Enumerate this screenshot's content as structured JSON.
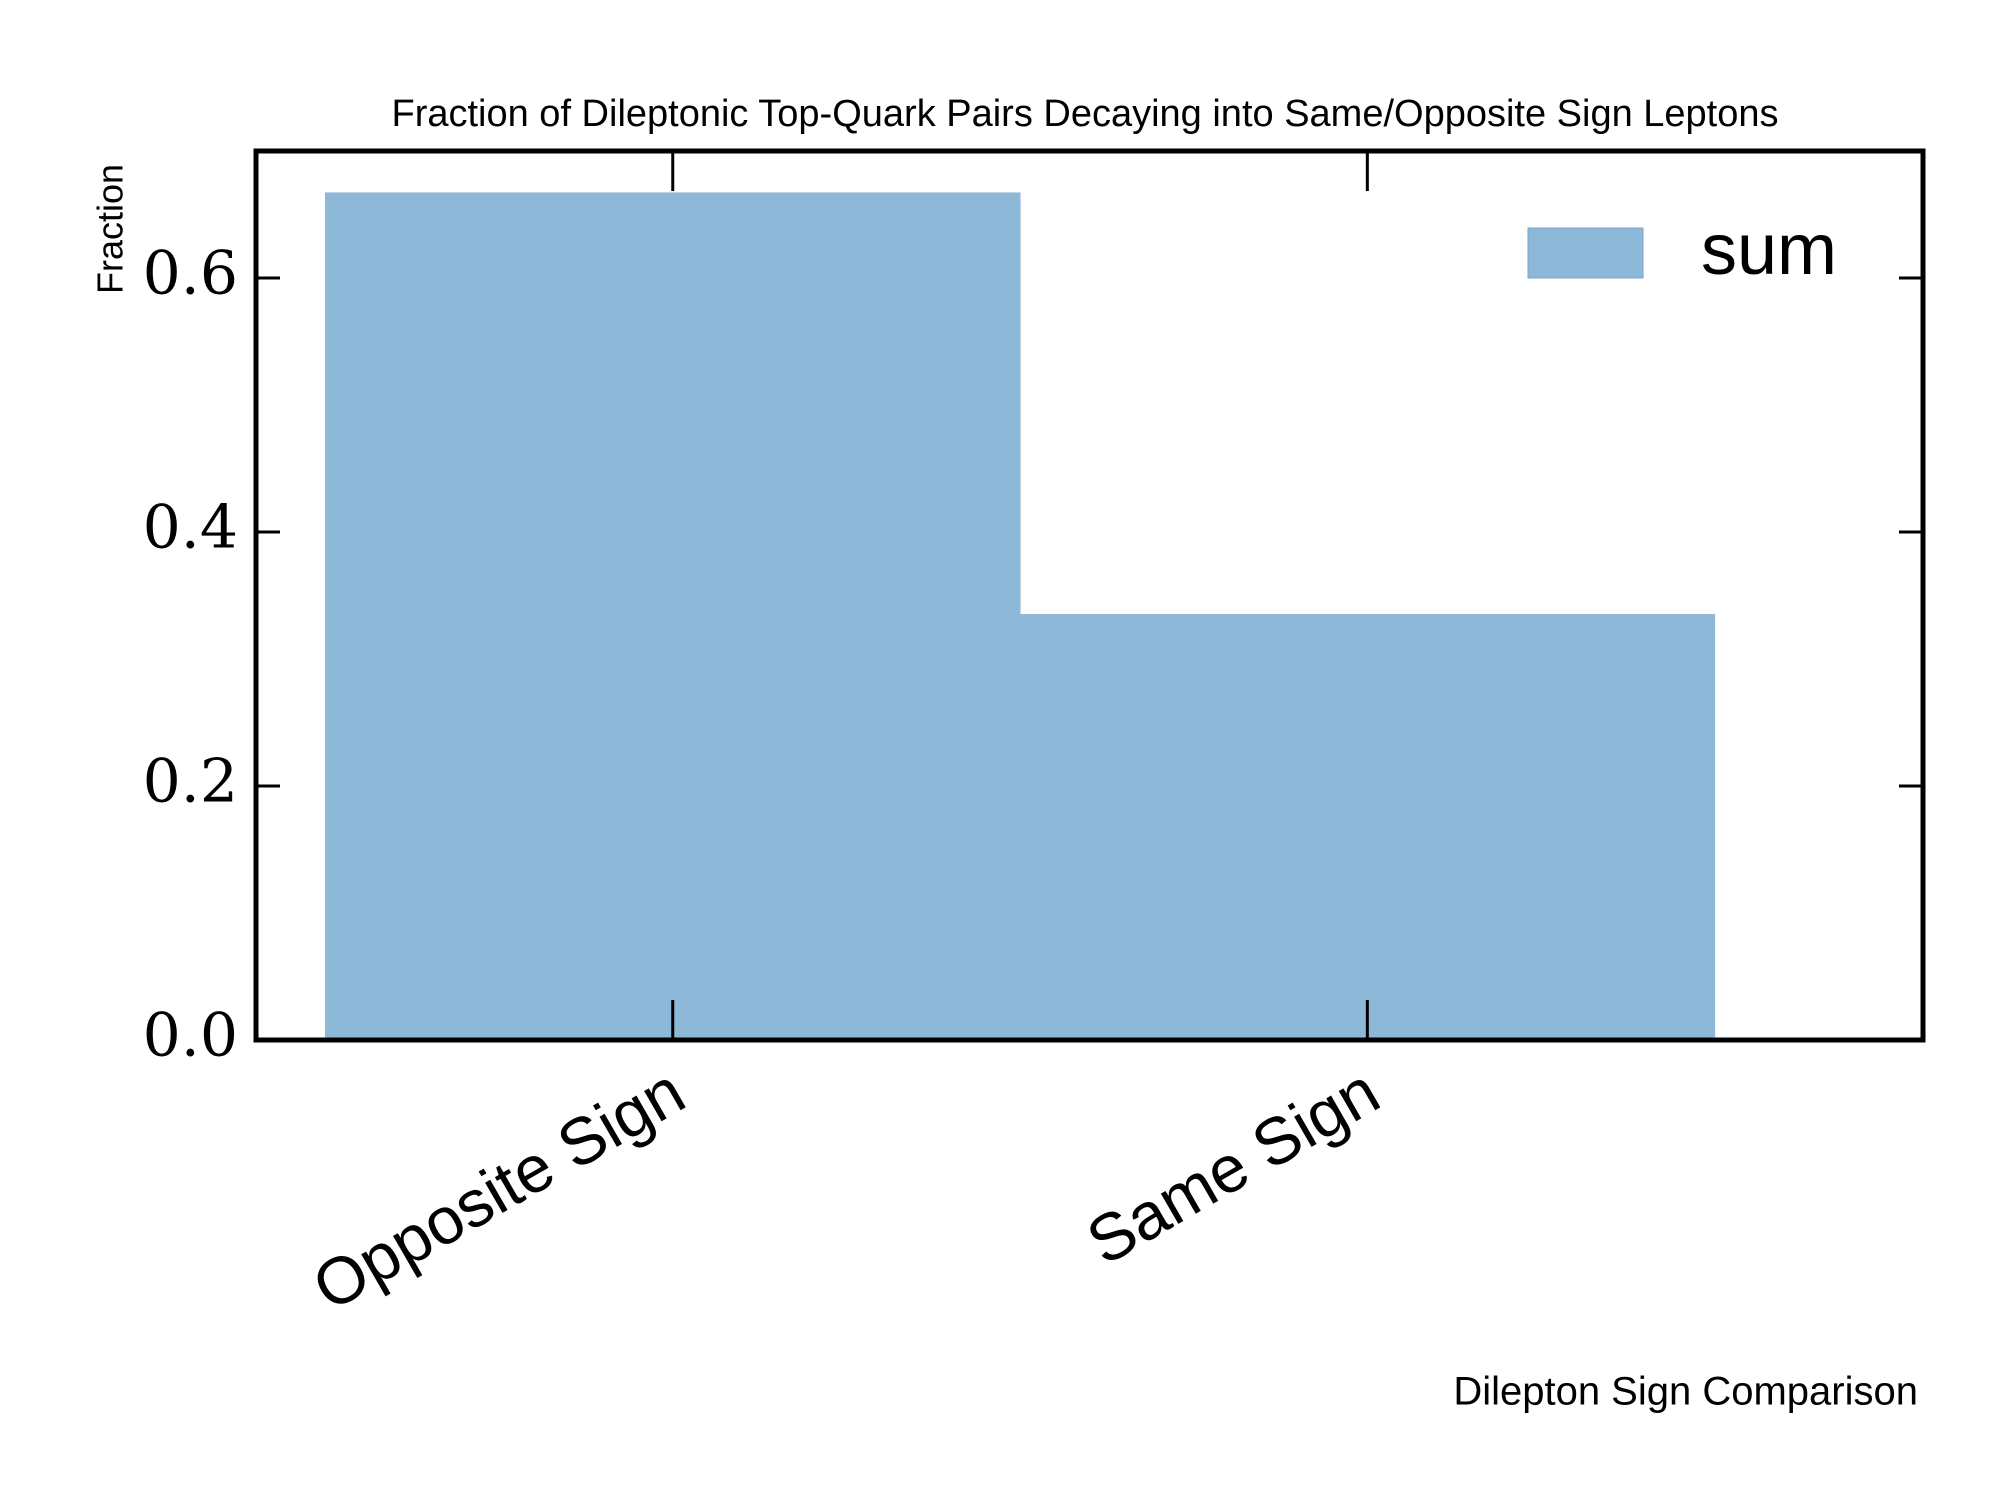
{
  "chart_data": {
    "type": "bar",
    "title": "Fraction of Dileptonic Top-Quark Pairs Decaying into Same/Opposite Sign Leptons",
    "y_label": "Fraction",
    "x_label": "Dilepton Sign Comparison",
    "categories": [
      "Opposite Sign",
      "Same Sign"
    ],
    "series": [
      {
        "name": "sum",
        "color": "#8eb8d8",
        "values": [
          0.667,
          0.335
        ]
      }
    ],
    "ylim": [
      0,
      0.7
    ],
    "yticks": [
      {
        "value": 0,
        "label": "0.0"
      },
      {
        "value": 0.2,
        "label": "0.2"
      },
      {
        "value": 0.4,
        "label": "0.4"
      },
      {
        "value": 0.6,
        "label": "0.6"
      }
    ],
    "legend": "upper right"
  }
}
